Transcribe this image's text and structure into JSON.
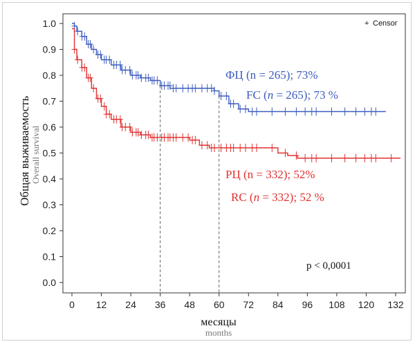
{
  "chart_data": {
    "type": "line",
    "title": "",
    "ylabel": "Общая выживаемость",
    "ylabel_sub": "Overall survival",
    "xlabel": "месяцы",
    "xlabel_sub": "months",
    "xlim": [
      0,
      132
    ],
    "ylim": [
      0,
      1.0
    ],
    "x_ticks": [
      0,
      12,
      24,
      36,
      48,
      60,
      72,
      84,
      96,
      108,
      120,
      132
    ],
    "y_ticks": [
      "0.0",
      "0.1",
      "0.2",
      "0.3",
      "0.4",
      "0.5",
      "0.6",
      "0.7",
      "0.8",
      "0.9",
      "1.0"
    ],
    "reference_lines_x": [
      36,
      60
    ],
    "legend": {
      "label": "Censor",
      "marker": "+",
      "position": "top-right"
    },
    "series": [
      {
        "color": "#3b5bbf",
        "annotation_ru": "ФЦ (n = 265); 73%",
        "annotation_en": "FC (n = 265); 73 %",
        "points": [
          [
            0,
            1.0
          ],
          [
            1,
            0.99
          ],
          [
            2,
            0.97
          ],
          [
            4,
            0.95
          ],
          [
            6,
            0.92
          ],
          [
            8,
            0.9
          ],
          [
            10,
            0.88
          ],
          [
            12,
            0.86
          ],
          [
            16,
            0.84
          ],
          [
            20,
            0.82
          ],
          [
            24,
            0.8
          ],
          [
            28,
            0.79
          ],
          [
            32,
            0.78
          ],
          [
            36,
            0.76
          ],
          [
            40,
            0.75
          ],
          [
            48,
            0.75
          ],
          [
            56,
            0.75
          ],
          [
            58,
            0.74
          ],
          [
            60,
            0.72
          ],
          [
            64,
            0.69
          ],
          [
            68,
            0.67
          ],
          [
            72,
            0.66
          ],
          [
            80,
            0.66
          ],
          [
            100,
            0.66
          ],
          [
            120,
            0.66
          ],
          [
            128,
            0.66
          ]
        ]
      },
      {
        "color": "#e03030",
        "annotation_ru": "РЦ (n = 332); 52%",
        "annotation_en": "RC (n = 332); 52 %",
        "points": [
          [
            0,
            0.98
          ],
          [
            1,
            0.9
          ],
          [
            2,
            0.86
          ],
          [
            4,
            0.83
          ],
          [
            6,
            0.79
          ],
          [
            8,
            0.75
          ],
          [
            10,
            0.71
          ],
          [
            12,
            0.68
          ],
          [
            14,
            0.65
          ],
          [
            16,
            0.63
          ],
          [
            20,
            0.6
          ],
          [
            24,
            0.58
          ],
          [
            28,
            0.57
          ],
          [
            32,
            0.56
          ],
          [
            36,
            0.56
          ],
          [
            44,
            0.56
          ],
          [
            48,
            0.55
          ],
          [
            52,
            0.53
          ],
          [
            56,
            0.52
          ],
          [
            60,
            0.52
          ],
          [
            76,
            0.52
          ],
          [
            84,
            0.5
          ],
          [
            88,
            0.49
          ],
          [
            92,
            0.48
          ],
          [
            100,
            0.48
          ],
          [
            120,
            0.48
          ],
          [
            134,
            0.48
          ]
        ]
      }
    ],
    "p_value": "p < 0,0001"
  }
}
